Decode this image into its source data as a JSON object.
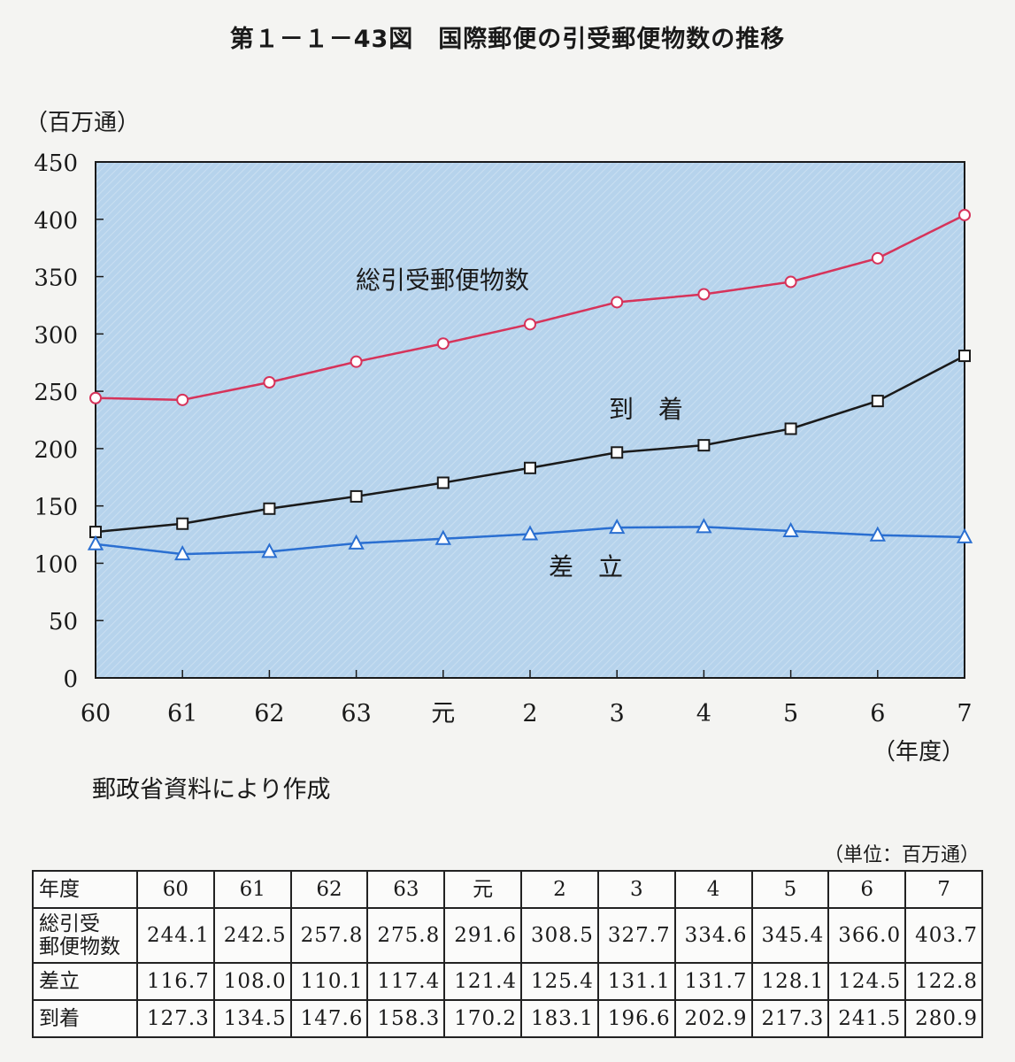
{
  "title": "第１－１－43図　国際郵便の引受郵便物数の推移",
  "source_note": "郵政省資料により作成",
  "table_unit": "（単位：百万通）",
  "chart_data": {
    "type": "line",
    "title": "第１－１－43図　国際郵便の引受郵便物数の推移",
    "ylabel": "（百万通）",
    "xlabel": "（年度）",
    "ylim": [
      0,
      450
    ],
    "yticks": [
      "0",
      "50",
      "100",
      "150",
      "200",
      "250",
      "300",
      "350",
      "400",
      "450"
    ],
    "categories": [
      "60",
      "61",
      "62",
      "63",
      "元",
      "2",
      "3",
      "4",
      "5",
      "6",
      "7"
    ],
    "grid": false,
    "colors": {
      "plot_bg": "#b6d3ec",
      "total": "#d6335a",
      "arrival": "#1a1a1a",
      "sent": "#2a6fd1"
    },
    "series": [
      {
        "name": "総引受郵便物数",
        "marker": "circle",
        "values": [
          244.1,
          242.5,
          257.8,
          275.8,
          291.6,
          308.5,
          327.7,
          334.6,
          345.4,
          366.0,
          403.7
        ]
      },
      {
        "name": "到　着",
        "marker": "square",
        "values": [
          127.3,
          134.5,
          147.6,
          158.3,
          170.2,
          183.1,
          196.6,
          202.9,
          217.3,
          241.5,
          280.9
        ]
      },
      {
        "name": "差　立",
        "marker": "triangle",
        "values": [
          116.7,
          108.0,
          110.1,
          117.4,
          121.4,
          125.4,
          131.1,
          131.7,
          128.1,
          124.5,
          122.8
        ]
      }
    ]
  },
  "table": {
    "corner": "年度",
    "headers": [
      "60",
      "61",
      "62",
      "63",
      "元",
      "2",
      "3",
      "4",
      "5",
      "6",
      "7"
    ],
    "rows": [
      {
        "label": "総引受\n郵便物数",
        "values": [
          "244.1",
          "242.5",
          "257.8",
          "275.8",
          "291.6",
          "308.5",
          "327.7",
          "334.6",
          "345.4",
          "366.0",
          "403.7"
        ]
      },
      {
        "label": "差立",
        "values": [
          "116.7",
          "108.0",
          "110.1",
          "117.4",
          "121.4",
          "125.4",
          "131.1",
          "131.7",
          "128.1",
          "124.5",
          "122.8"
        ]
      },
      {
        "label": "到着",
        "values": [
          "127.3",
          "134.5",
          "147.6",
          "158.3",
          "170.2",
          "183.1",
          "196.6",
          "202.9",
          "217.3",
          "241.5",
          "280.9"
        ]
      }
    ]
  }
}
